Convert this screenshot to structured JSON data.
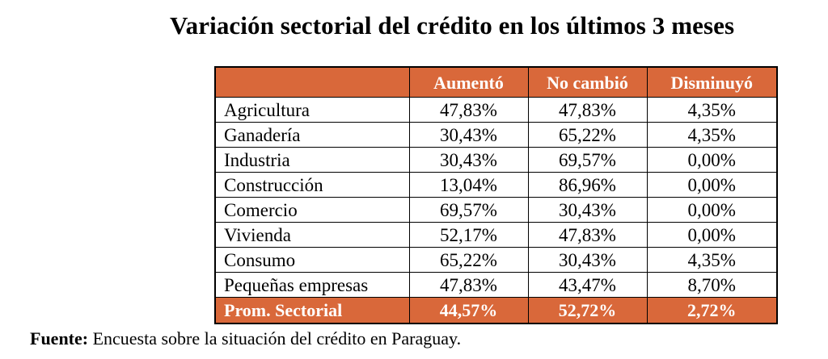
{
  "title": "Variación sectorial del crédito en los últimos 3 meses",
  "table": {
    "headers": [
      "",
      "Aumentó",
      "No cambió",
      "Disminuyó"
    ],
    "rows": [
      {
        "sector": "Agricultura",
        "aumento": "47,83%",
        "no_cambio": "47,83%",
        "disminuyo": "4,35%"
      },
      {
        "sector": "Ganadería",
        "aumento": "30,43%",
        "no_cambio": "65,22%",
        "disminuyo": "4,35%"
      },
      {
        "sector": "Industria",
        "aumento": "30,43%",
        "no_cambio": "69,57%",
        "disminuyo": "0,00%"
      },
      {
        "sector": "Construcción",
        "aumento": "13,04%",
        "no_cambio": "86,96%",
        "disminuyo": "0,00%"
      },
      {
        "sector": "Comercio",
        "aumento": "69,57%",
        "no_cambio": "30,43%",
        "disminuyo": "0,00%"
      },
      {
        "sector": "Vivienda",
        "aumento": "52,17%",
        "no_cambio": "47,83%",
        "disminuyo": "0,00%"
      },
      {
        "sector": "Consumo",
        "aumento": "65,22%",
        "no_cambio": "30,43%",
        "disminuyo": "4,35%"
      },
      {
        "sector": "Pequeñas empresas",
        "aumento": "47,83%",
        "no_cambio": "43,47%",
        "disminuyo": "8,70%"
      }
    ],
    "footer": {
      "sector": "Prom. Sectorial",
      "aumento": "44,57%",
      "no_cambio": "52,72%",
      "disminuyo": "2,72%"
    }
  },
  "source": {
    "lead": "Fuente:",
    "text": " Encuesta sobre la situación del crédito en Paraguay."
  },
  "colors": {
    "header_bg": "#d9683a",
    "header_text": "#ffffff"
  }
}
